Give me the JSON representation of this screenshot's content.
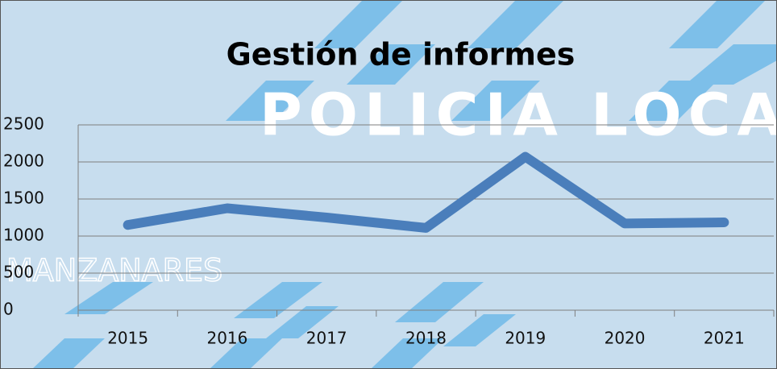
{
  "chart_data": {
    "type": "line",
    "title": "Gestión de informes",
    "watermarks": [
      "POLICIA LOCAL",
      "MANZANARES"
    ],
    "categories": [
      "2015",
      "2016",
      "2017",
      "2018",
      "2019",
      "2020",
      "2021"
    ],
    "values": [
      1150,
      1375,
      1250,
      1110,
      2070,
      1170,
      1185
    ],
    "color": "#4a7ebb",
    "ylim": [
      0,
      2500
    ],
    "yticks": [
      0,
      500,
      1000,
      1500,
      2000,
      2500
    ],
    "grid": true
  }
}
